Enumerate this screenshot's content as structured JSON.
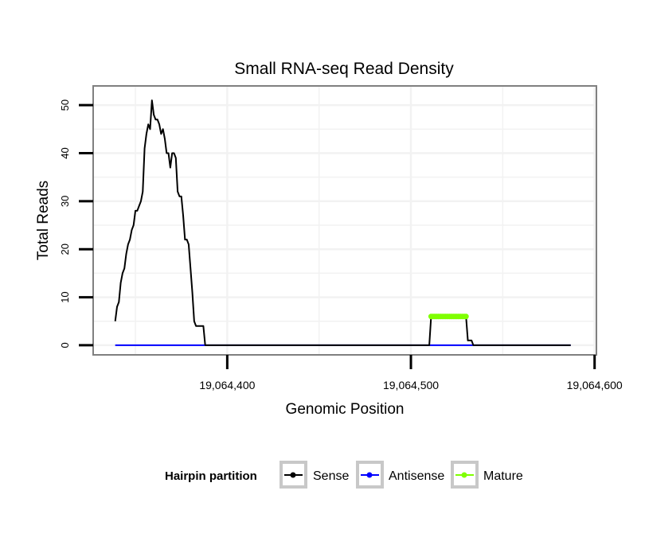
{
  "chart_data": {
    "type": "line",
    "title": "Small RNA-seq Read Density",
    "xlabel": "Genomic Position",
    "ylabel": "Total Reads",
    "xlim": [
      19064327,
      19064601
    ],
    "ylim": [
      -2,
      54
    ],
    "x_ticks": [
      {
        "value": 19064400,
        "label": "19,064,400"
      },
      {
        "value": 19064500,
        "label": "19,064,500"
      },
      {
        "value": 19064600,
        "label": "19,064,600"
      }
    ],
    "y_ticks": [
      {
        "value": 0,
        "label": "0"
      },
      {
        "value": 10,
        "label": "10"
      },
      {
        "value": 20,
        "label": "20"
      },
      {
        "value": 30,
        "label": "30"
      },
      {
        "value": 40,
        "label": "40"
      },
      {
        "value": 50,
        "label": "50"
      }
    ],
    "grid": true,
    "legend": {
      "title": "Hairpin partition",
      "position": "bottom",
      "entries": [
        {
          "label": "Sense",
          "color": "#000000"
        },
        {
          "label": "Antisense",
          "color": "#0000ff"
        },
        {
          "label": "Mature",
          "color": "#7fff00"
        }
      ]
    },
    "series": [
      {
        "name": "Sense",
        "color": "#000000",
        "x": [
          19064339,
          19064340,
          19064341,
          19064342,
          19064343,
          19064344,
          19064345,
          19064346,
          19064347,
          19064348,
          19064349,
          19064350,
          19064351,
          19064352,
          19064353,
          19064354,
          19064355,
          19064356,
          19064357,
          19064358,
          19064359,
          19064360,
          19064361,
          19064362,
          19064363,
          19064364,
          19064365,
          19064366,
          19064367,
          19064368,
          19064369,
          19064370,
          19064371,
          19064372,
          19064373,
          19064374,
          19064375,
          19064376,
          19064377,
          19064378,
          19064379,
          19064380,
          19064381,
          19064382,
          19064383,
          19064384,
          19064385,
          19064386,
          19064387,
          19064388,
          19064389,
          19064390,
          19064391,
          19064392,
          19064393,
          19064394,
          19064510,
          19064511,
          19064512,
          19064530,
          19064531,
          19064532,
          19064533,
          19064534,
          19064535,
          19064587
        ],
        "y": [
          5,
          8,
          9,
          13,
          15,
          16,
          19,
          21,
          22,
          24,
          25,
          28,
          28,
          29,
          30,
          32,
          41,
          44,
          46,
          45,
          51,
          48,
          47,
          47,
          46,
          44,
          45,
          43,
          40,
          40,
          37,
          40,
          40,
          39,
          32,
          31,
          31,
          27,
          22,
          22,
          21,
          16,
          11,
          5,
          4,
          4,
          4,
          4,
          4,
          0,
          0,
          0,
          0,
          0,
          0,
          0,
          0,
          6,
          6,
          6,
          1,
          1,
          1,
          0,
          0,
          0
        ]
      },
      {
        "name": "Antisense",
        "color": "#0000ff",
        "x": [
          19064339,
          19064587
        ],
        "y": [
          0,
          0
        ]
      },
      {
        "name": "Mature",
        "color": "#7fff00",
        "x": [
          19064511,
          19064512,
          19064513,
          19064514,
          19064515,
          19064516,
          19064517,
          19064518,
          19064519,
          19064520,
          19064521,
          19064522,
          19064523,
          19064524,
          19064525,
          19064526,
          19064527,
          19064528,
          19064529,
          19064530
        ],
        "y": [
          6,
          6,
          6,
          6,
          6,
          6,
          6,
          6,
          6,
          6,
          6,
          6,
          6,
          6,
          6,
          6,
          6,
          6,
          6,
          6
        ]
      }
    ]
  }
}
